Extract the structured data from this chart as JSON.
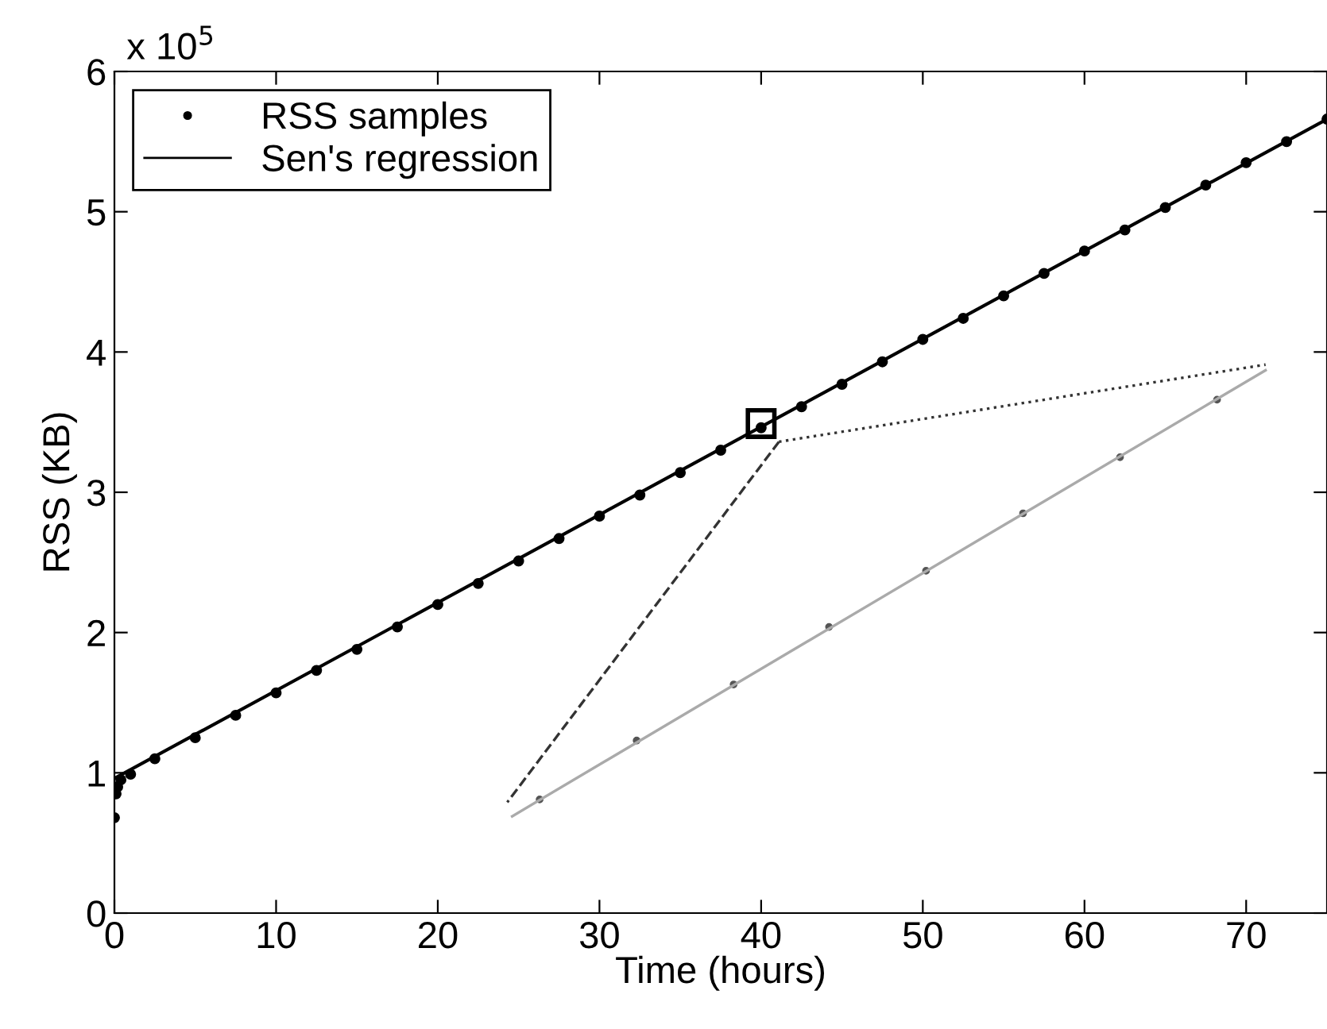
{
  "chart_data": {
    "type": "line",
    "xlabel": "Time (hours)",
    "ylabel": "RSS (KB)",
    "xlim": [
      0,
      75
    ],
    "xticks": [
      0,
      10,
      20,
      30,
      40,
      50,
      60,
      70
    ],
    "ylim": [
      0,
      6
    ],
    "yticks": [
      0,
      1,
      2,
      3,
      4,
      5,
      6
    ],
    "annotations": [
      "x 10$^{5}$"
    ],
    "legend": "top left",
    "grid": false,
    "series": [
      {
        "name": "RSS samples",
        "type": "scatter",
        "marker": "circle",
        "color": "#000000",
        "x": [
          0,
          0.1,
          0.2,
          0.4,
          1,
          2.5,
          5,
          7.5,
          10,
          12.5,
          15,
          17.5,
          20,
          22.5,
          25,
          27.5,
          30,
          32.5,
          35,
          37.5,
          40,
          42.5,
          45,
          47.5,
          50,
          52.5,
          55,
          57.5,
          60,
          62.5,
          65,
          67.5,
          70,
          72.5,
          75
        ],
        "values": [
          0.68,
          0.85,
          0.9,
          0.95,
          0.99,
          1.1,
          1.25,
          1.41,
          1.57,
          1.73,
          1.88,
          2.04,
          2.2,
          2.35,
          2.51,
          2.67,
          2.83,
          2.98,
          3.14,
          3.3,
          3.46,
          3.61,
          3.77,
          3.93,
          4.09,
          4.24,
          4.4,
          4.56,
          4.72,
          4.87,
          5.03,
          5.19,
          5.35,
          5.5,
          5.66
        ]
      },
      {
        "name": "Sen's regression",
        "line_style": "solid",
        "color": "#000000",
        "x": [
          0,
          75
        ],
        "values": [
          0.96,
          5.66
        ]
      },
      {
        "type": "scatter",
        "marker": "square",
        "color": "#000000",
        "x": [
          40
        ],
        "values": [
          3.49
        ]
      },
      {
        "type": "line",
        "line_style": "dashed",
        "color": "#333333",
        "x": [
          41.1,
          24.3
        ],
        "values": [
          3.36,
          0.79
        ]
      },
      {
        "type": "line",
        "line_style": "dotted",
        "color": "#333333",
        "x": [
          41.1,
          71.2
        ],
        "values": [
          3.36,
          3.91
        ]
      },
      {
        "type": "line",
        "line_style": "solid",
        "color": "#aaaaaa",
        "x": [
          24.6,
          71.2
        ],
        "values": [
          0.69,
          3.87
        ]
      },
      {
        "type": "scatter",
        "marker": "circle",
        "color": "#555555",
        "x": [
          26.3,
          32.3,
          38.3,
          44.2,
          50.2,
          56.2,
          62.2,
          68.2
        ],
        "values": [
          0.81,
          1.23,
          1.63,
          2.04,
          2.44,
          2.85,
          3.25,
          3.66
        ]
      }
    ]
  }
}
